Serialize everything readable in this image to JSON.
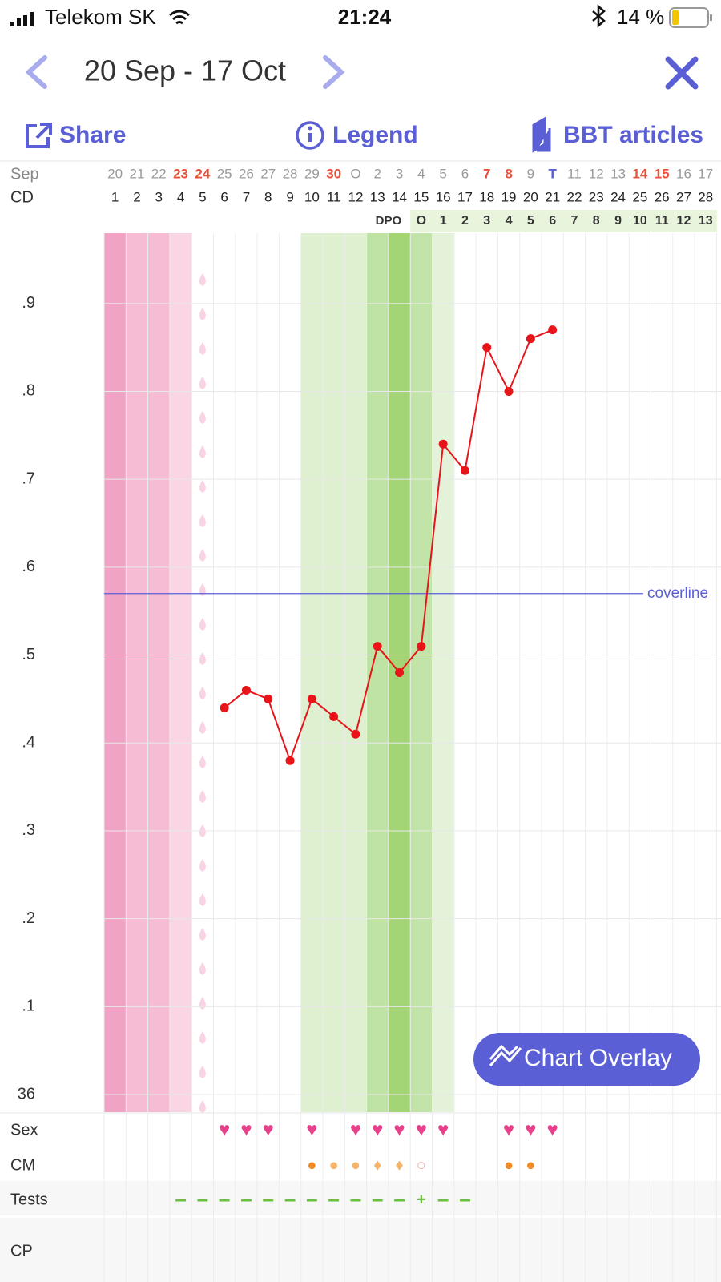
{
  "status_bar": {
    "carrier": "Telekom SK",
    "time": "21:24",
    "battery": "14 %"
  },
  "header": {
    "title": "20 Sep - 17 Oct"
  },
  "toolbar": {
    "share": "Share",
    "legend": "Legend",
    "articles": "BBT articles"
  },
  "chart_data": {
    "type": "line",
    "month_label": "Sep",
    "cd_label": "CD",
    "dpo_label": "DPO",
    "dates": [
      "20",
      "21",
      "22",
      "23",
      "24",
      "25",
      "26",
      "27",
      "28",
      "29",
      "30",
      "O",
      "2",
      "3",
      "4",
      "5",
      "6",
      "7",
      "8",
      "9",
      "T",
      "11",
      "12",
      "13",
      "14",
      "15",
      "16",
      "17"
    ],
    "date_colors": [
      "#9a9a9a",
      "#9a9a9a",
      "#9a9a9a",
      "#e8503a",
      "#e8503a",
      "#9a9a9a",
      "#9a9a9a",
      "#9a9a9a",
      "#9a9a9a",
      "#9a9a9a",
      "#e8503a",
      "#9a9a9a",
      "#9a9a9a",
      "#9a9a9a",
      "#9a9a9a",
      "#9a9a9a",
      "#9a9a9a",
      "#e8503a",
      "#e8503a",
      "#9a9a9a",
      "#5b5fd6",
      "#9a9a9a",
      "#9a9a9a",
      "#9a9a9a",
      "#e8503a",
      "#e8503a",
      "#9a9a9a",
      "#9a9a9a"
    ],
    "categories": [
      1,
      2,
      3,
      4,
      5,
      6,
      7,
      8,
      9,
      10,
      11,
      12,
      13,
      14,
      15,
      16,
      17,
      18,
      19,
      20,
      21,
      22,
      23,
      24,
      25,
      26,
      27,
      28
    ],
    "dpo": [
      null,
      null,
      null,
      null,
      null,
      null,
      null,
      null,
      null,
      null,
      null,
      null,
      null,
      null,
      "O",
      1,
      2,
      3,
      4,
      5,
      6,
      7,
      8,
      9,
      10,
      11,
      12,
      13
    ],
    "values": [
      null,
      null,
      null,
      null,
      null,
      36.44,
      36.46,
      36.45,
      36.38,
      36.45,
      36.43,
      36.41,
      36.51,
      36.48,
      36.51,
      36.74,
      36.71,
      36.85,
      36.8,
      36.86,
      36.87,
      null,
      null,
      null,
      null,
      null,
      null,
      null
    ],
    "color": "#e8141a",
    "column_colors": [
      "#f0a3c4",
      "#f5bcd4",
      "#f5bcd4",
      "#fad6e4",
      null,
      null,
      null,
      null,
      null,
      "#def0d0",
      "#def0d0",
      "#def0d0",
      "#bfe3a4",
      "#a3d577",
      "#c2e4a8",
      "#e3f2d9",
      null,
      null,
      null,
      null,
      null,
      null,
      null,
      null,
      null,
      null,
      null,
      null
    ],
    "coverline": {
      "value": 36.57,
      "label": "coverline",
      "color": "#5a5fd6"
    },
    "ylim": [
      35.98,
      36.98
    ],
    "yticks": [
      36,
      {
        "value": 36.1,
        "label": ".1"
      },
      {
        "value": 36.2,
        "label": ".2"
      },
      {
        "value": 36.3,
        "label": ".3"
      },
      {
        "value": 36.4,
        "label": ".4"
      },
      {
        "value": 36.5,
        "label": ".5"
      },
      {
        "value": 36.6,
        "label": ".6"
      },
      {
        "value": 36.7,
        "label": ".7"
      },
      {
        "value": 36.8,
        "label": ".8"
      },
      {
        "value": 36.9,
        "label": ".9"
      }
    ],
    "grid": true,
    "overlay_button": "Chart Overlay",
    "rows": [
      {
        "label": "Sex",
        "color": "#e8408a",
        "marks": [
          null,
          null,
          null,
          null,
          null,
          "♥",
          "♥",
          "♥",
          null,
          "♥",
          null,
          "♥",
          "♥",
          "♥",
          "♥",
          "♥",
          null,
          null,
          "♥",
          "♥",
          "♥",
          null,
          null,
          null,
          null,
          null,
          null,
          null
        ]
      },
      {
        "label": "CM",
        "marks": [
          null,
          null,
          null,
          null,
          null,
          null,
          null,
          null,
          null,
          "●",
          "●",
          "●",
          "♦",
          "♦",
          "○",
          null,
          null,
          null,
          "●",
          "●",
          null,
          null,
          null,
          null,
          null,
          null,
          null,
          null
        ],
        "colors": [
          null,
          null,
          null,
          null,
          null,
          null,
          null,
          null,
          null,
          "#f08a24",
          "#f6b46a",
          "#f6b46a",
          "#f6b46a",
          "#f6b46a",
          "#f3a9a0",
          null,
          null,
          null,
          "#f08a24",
          "#f08a24",
          null,
          null,
          null,
          null,
          null,
          null,
          null,
          null
        ]
      },
      {
        "label": "Tests",
        "color": "#6abf3c",
        "marks": [
          null,
          null,
          null,
          "–",
          "–",
          "–",
          "–",
          "–",
          "–",
          "–",
          "–",
          "–",
          "–",
          "–",
          "+",
          "–",
          "–",
          null,
          null,
          null,
          null,
          null,
          null,
          null,
          null,
          null,
          null,
          null
        ]
      },
      {
        "label": "CP",
        "marks": [
          null,
          null,
          null,
          null,
          null,
          null,
          null,
          null,
          null,
          null,
          null,
          null,
          null,
          null,
          null,
          null,
          null,
          null,
          null,
          null,
          null,
          null,
          null,
          null,
          null,
          null,
          null,
          null
        ]
      }
    ]
  }
}
